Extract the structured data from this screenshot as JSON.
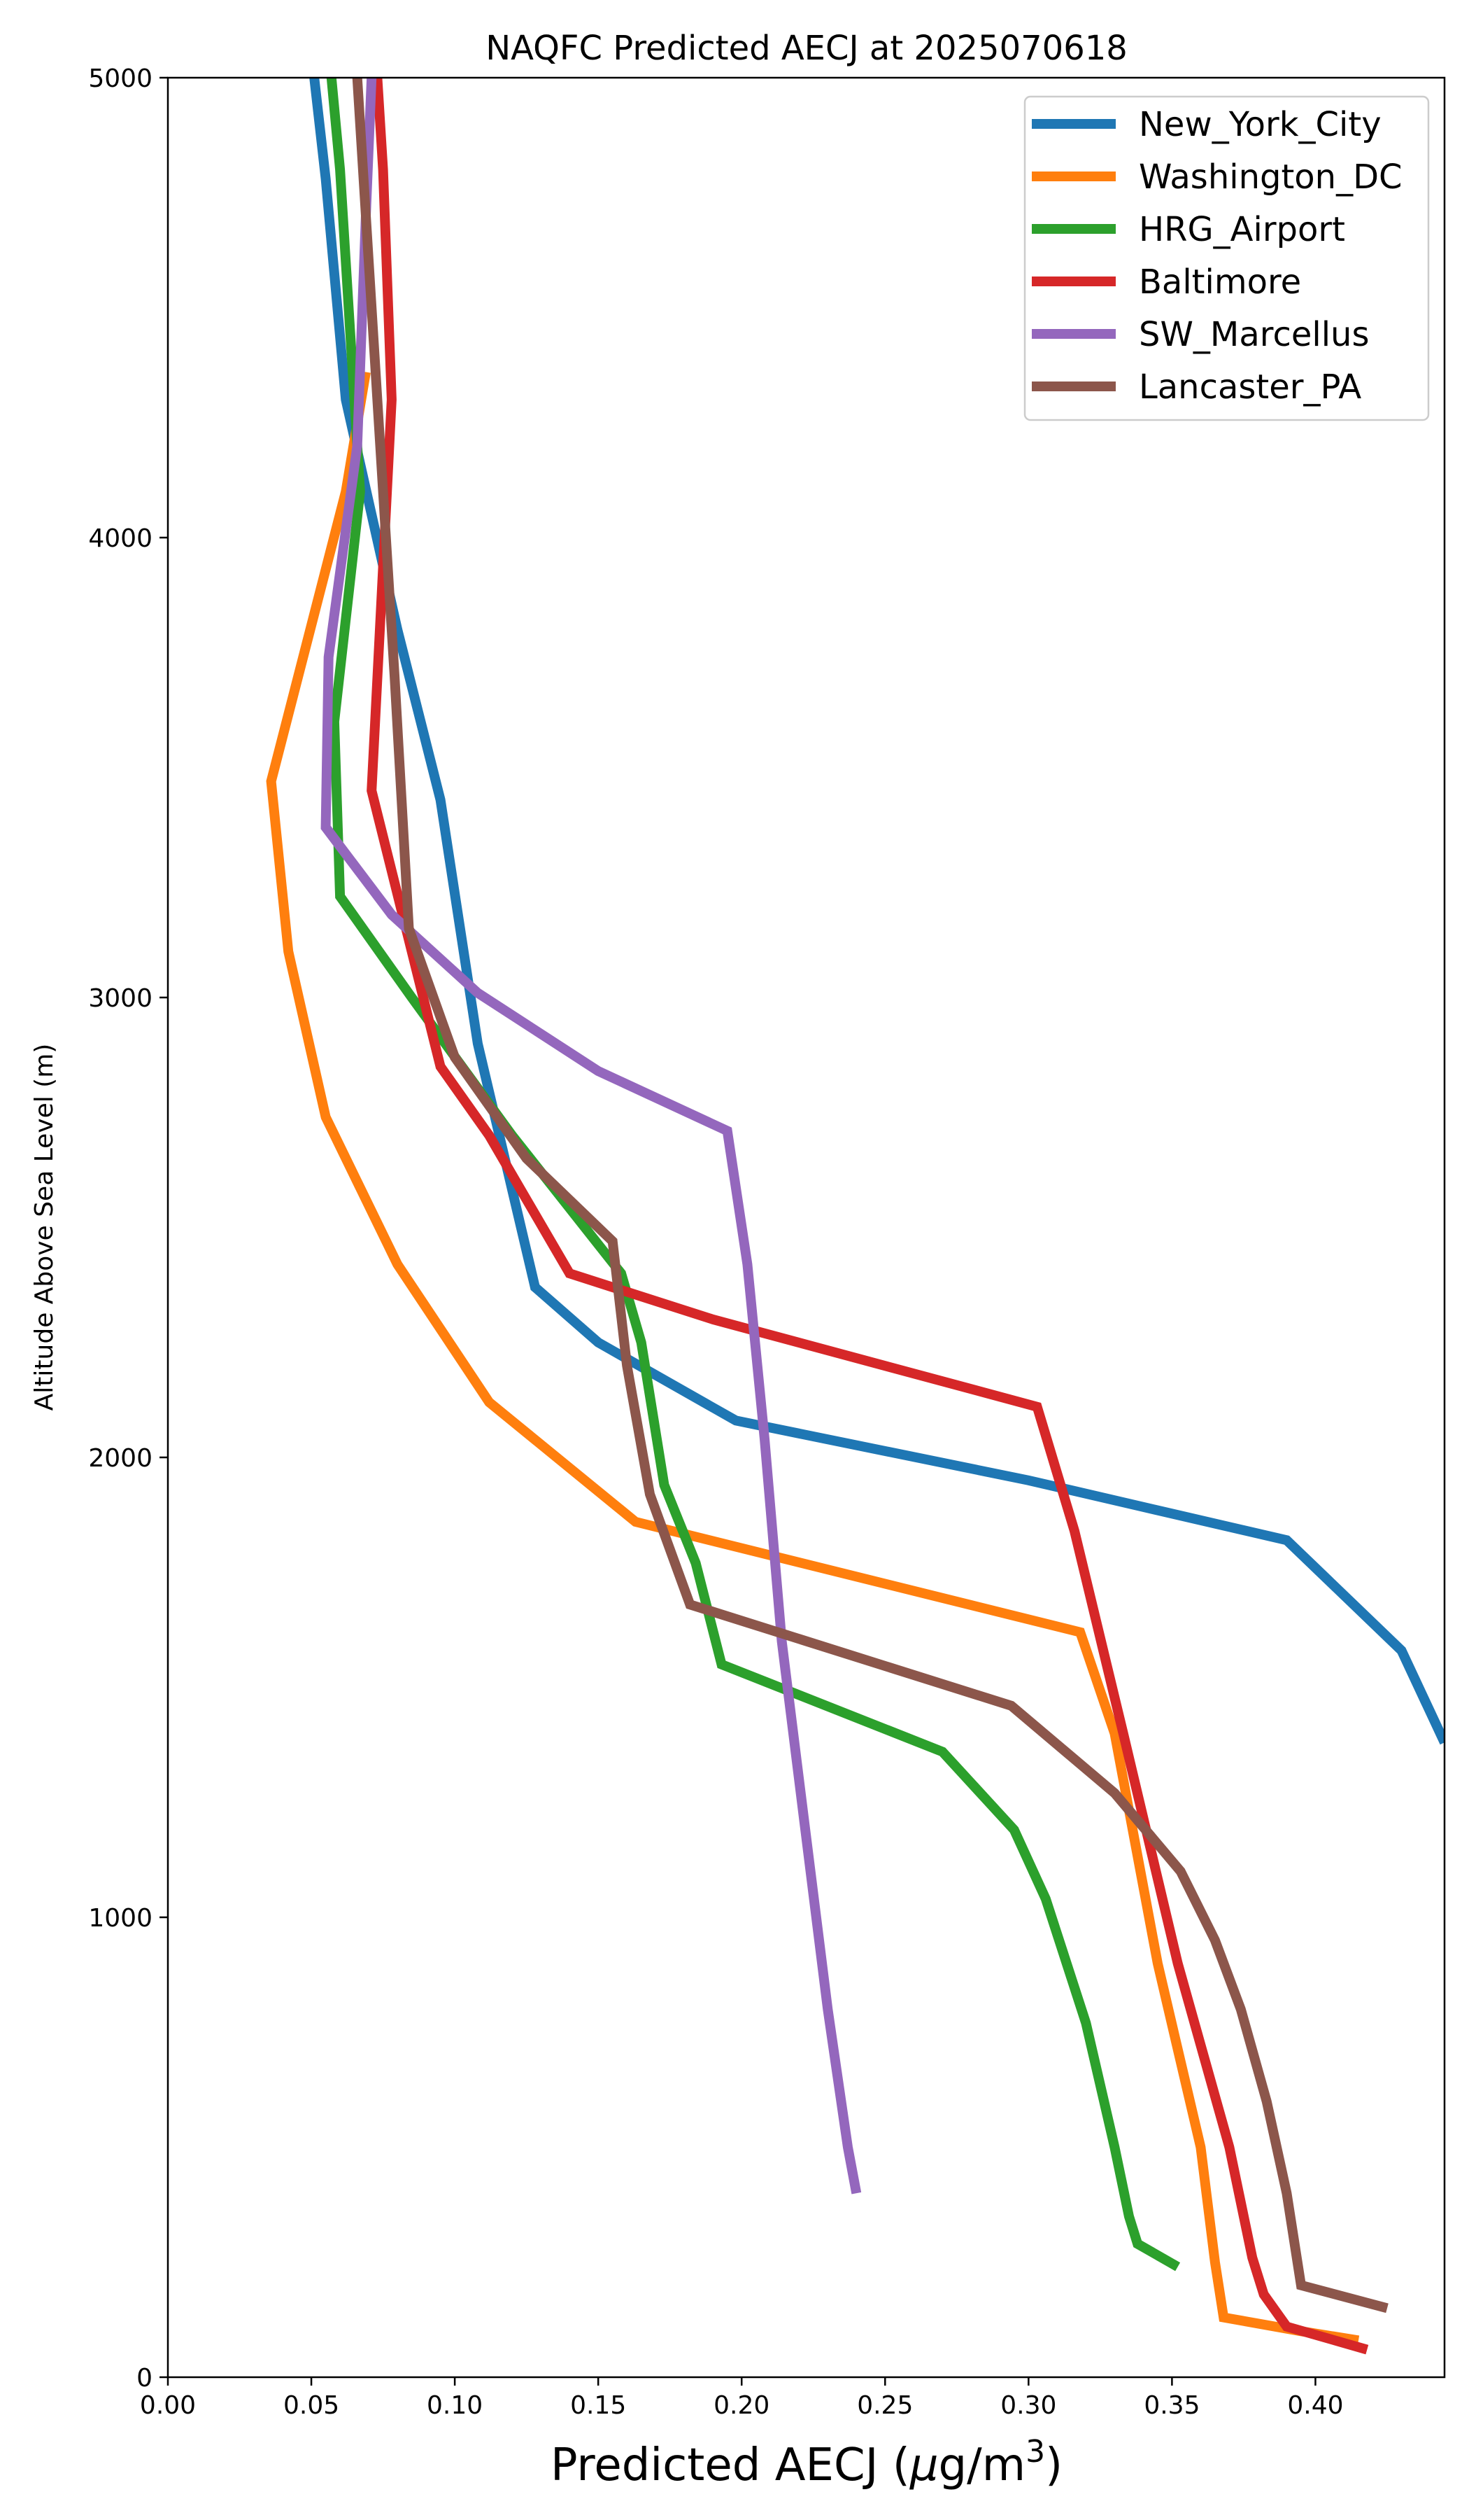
{
  "chart_data": {
    "type": "line",
    "title": "NAQFC Predicted AECJ at 2025070618",
    "xlabel_prefix": "Predicted AECJ (",
    "xlabel_mu": "μ",
    "xlabel_unit": "g/m",
    "xlabel_exp": "3",
    "xlabel_suffix": ")",
    "ylabel": "Altitude Above Sea Level (m)",
    "xlim": [
      0.0,
      0.445
    ],
    "ylim": [
      0,
      5000
    ],
    "xticks": [
      "0.00",
      "0.05",
      "0.10",
      "0.15",
      "0.20",
      "0.25",
      "0.30",
      "0.35",
      "0.40"
    ],
    "yticks": [
      "0",
      "1000",
      "2000",
      "3000",
      "4000",
      "5000"
    ],
    "grid": false,
    "legend_position": "top-right",
    "series": [
      {
        "name": "New_York_City",
        "color": "#1f77b4",
        "points": [
          [
            0.051,
            5000
          ],
          [
            0.055,
            4780
          ],
          [
            0.062,
            4300
          ],
          [
            0.08,
            3800
          ],
          [
            0.095,
            3430
          ],
          [
            0.108,
            2900
          ],
          [
            0.128,
            2370
          ],
          [
            0.15,
            2250
          ],
          [
            0.198,
            2080
          ],
          [
            0.3,
            1950
          ],
          [
            0.39,
            1820
          ],
          [
            0.43,
            1580
          ],
          [
            0.445,
            1380
          ]
        ]
      },
      {
        "name": "Washington_DC",
        "color": "#ff7f0e",
        "points": [
          [
            0.069,
            4360
          ],
          [
            0.062,
            4100
          ],
          [
            0.036,
            3470
          ],
          [
            0.042,
            3100
          ],
          [
            0.055,
            2740
          ],
          [
            0.08,
            2420
          ],
          [
            0.112,
            2120
          ],
          [
            0.163,
            1860
          ],
          [
            0.318,
            1620
          ],
          [
            0.33,
            1400
          ],
          [
            0.345,
            900
          ],
          [
            0.36,
            500
          ],
          [
            0.365,
            250
          ],
          [
            0.368,
            130
          ],
          [
            0.395,
            100
          ],
          [
            0.415,
            80
          ]
        ]
      },
      {
        "name": "HRG_Airport",
        "color": "#2ca02c",
        "points": [
          [
            0.057,
            5000
          ],
          [
            0.06,
            4800
          ],
          [
            0.067,
            4100
          ],
          [
            0.058,
            3600
          ],
          [
            0.06,
            3220
          ],
          [
            0.085,
            3000
          ],
          [
            0.12,
            2700
          ],
          [
            0.158,
            2400
          ],
          [
            0.165,
            2250
          ],
          [
            0.173,
            1940
          ],
          [
            0.184,
            1770
          ],
          [
            0.193,
            1550
          ],
          [
            0.27,
            1360
          ],
          [
            0.295,
            1190
          ],
          [
            0.306,
            1040
          ],
          [
            0.32,
            770
          ],
          [
            0.33,
            500
          ],
          [
            0.335,
            350
          ],
          [
            0.338,
            290
          ],
          [
            0.352,
            240
          ]
        ]
      },
      {
        "name": "Baltimore",
        "color": "#d62728",
        "points": [
          [
            0.073,
            5000
          ],
          [
            0.075,
            4800
          ],
          [
            0.078,
            4300
          ],
          [
            0.071,
            3450
          ],
          [
            0.083,
            3150
          ],
          [
            0.095,
            2850
          ],
          [
            0.112,
            2700
          ],
          [
            0.14,
            2400
          ],
          [
            0.19,
            2300
          ],
          [
            0.303,
            2110
          ],
          [
            0.316,
            1840
          ],
          [
            0.333,
            1400
          ],
          [
            0.352,
            900
          ],
          [
            0.37,
            500
          ],
          [
            0.378,
            260
          ],
          [
            0.382,
            180
          ],
          [
            0.39,
            110
          ],
          [
            0.418,
            60
          ]
        ]
      },
      {
        "name": "SW_Marcellus",
        "color": "#9467bd",
        "points": [
          [
            0.071,
            5000
          ],
          [
            0.069,
            4700
          ],
          [
            0.066,
            4200
          ],
          [
            0.056,
            3740
          ],
          [
            0.055,
            3370
          ],
          [
            0.078,
            3180
          ],
          [
            0.108,
            3010
          ],
          [
            0.15,
            2840
          ],
          [
            0.195,
            2710
          ],
          [
            0.202,
            2420
          ],
          [
            0.208,
            2040
          ],
          [
            0.214,
            1600
          ],
          [
            0.222,
            1200
          ],
          [
            0.23,
            800
          ],
          [
            0.237,
            500
          ],
          [
            0.24,
            400
          ]
        ]
      },
      {
        "name": "Lancaster_PA",
        "color": "#8c564b",
        "points": [
          [
            0.066,
            5000
          ],
          [
            0.07,
            4600
          ],
          [
            0.075,
            4100
          ],
          [
            0.079,
            3700
          ],
          [
            0.084,
            3150
          ],
          [
            0.1,
            2870
          ],
          [
            0.125,
            2650
          ],
          [
            0.155,
            2470
          ],
          [
            0.16,
            2200
          ],
          [
            0.168,
            1920
          ],
          [
            0.182,
            1680
          ],
          [
            0.294,
            1460
          ],
          [
            0.33,
            1270
          ],
          [
            0.353,
            1100
          ],
          [
            0.365,
            950
          ],
          [
            0.374,
            800
          ],
          [
            0.383,
            600
          ],
          [
            0.39,
            400
          ],
          [
            0.395,
            200
          ],
          [
            0.425,
            150
          ]
        ]
      }
    ]
  }
}
